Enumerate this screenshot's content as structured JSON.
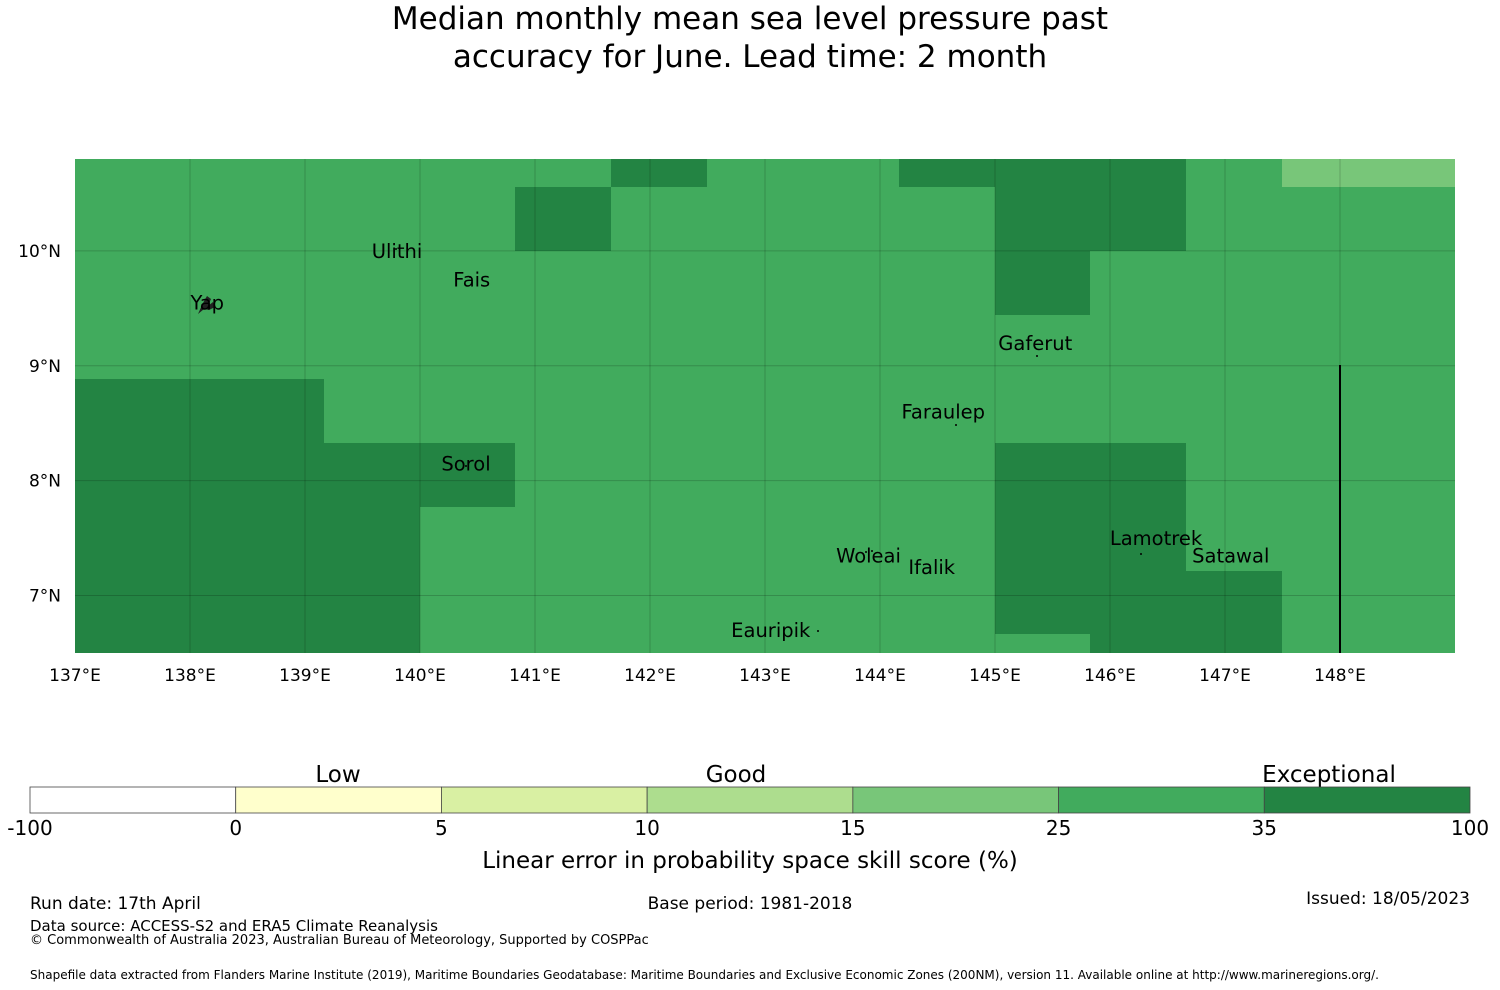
{
  "title": {
    "line1": "Median monthly mean sea level pressure past",
    "line2": "accuracy for June. Lead time: 2 month"
  },
  "map": {
    "lon_range": [
      137.0,
      149.0
    ],
    "lat_range": [
      6.5,
      10.8
    ],
    "lon_ticks": [
      "137°E",
      "138°E",
      "139°E",
      "140°E",
      "141°E",
      "142°E",
      "143°E",
      "144°E",
      "145°E",
      "146°E",
      "147°E",
      "148°E"
    ],
    "lat_ticks": [
      "7°N",
      "8°N",
      "9°N",
      "10°N"
    ],
    "colors": {
      "band_15_25": "#78c679",
      "band_25_35": "#41ab5d",
      "band_35_100": "#238443"
    },
    "places": [
      {
        "name": "Ulithi",
        "lon": 139.8,
        "lat": 10.0
      },
      {
        "name": "Fais",
        "lon": 140.45,
        "lat": 9.75
      },
      {
        "name": "Yap",
        "lon": 138.15,
        "lat": 9.55
      },
      {
        "name": "Gaferut",
        "lon": 145.35,
        "lat": 9.2
      },
      {
        "name": "Faraulep",
        "lon": 144.55,
        "lat": 8.6
      },
      {
        "name": "Sorol",
        "lon": 140.4,
        "lat": 8.15
      },
      {
        "name": "Woleai",
        "lon": 143.9,
        "lat": 7.35
      },
      {
        "name": "Ifalik",
        "lon": 144.45,
        "lat": 7.25
      },
      {
        "name": "Lamotrek",
        "lon": 146.4,
        "lat": 7.5
      },
      {
        "name": "Satawal",
        "lon": 147.05,
        "lat": 7.35
      },
      {
        "name": "Eauripik",
        "lon": 143.05,
        "lat": 6.7
      }
    ]
  },
  "legend": {
    "categories": [
      "Low",
      "Good",
      "Exceptional"
    ],
    "boundaries": [
      "-100",
      "0",
      "5",
      "10",
      "15",
      "25",
      "35",
      "100"
    ],
    "colors": [
      "#ffffff",
      "#ffffcc",
      "#d9f0a3",
      "#addd8e",
      "#78c679",
      "#41ab5d",
      "#238443"
    ],
    "label": "Linear error in probability space skill score (%)"
  },
  "footer": {
    "run_date": "Run date: 17th April",
    "base_period": "Base period: 1981-2018",
    "issued": "Issued: 18/05/2023",
    "data_source": "Data source: ACCESS-S2 and ERA5 Climate Reanalysis",
    "copyright": "© Commonwealth of Australia 2023, Australian Bureau of Meteorology, Supported by COSPPac",
    "shapefile": "Shapefile data extracted from Flanders Marine Institute (2019), Maritime Boundaries Geodatabase: Maritime Boundaries and Exclusive Economic Zones (200NM), version 11. Available online at http://www.marineregions.org/."
  }
}
